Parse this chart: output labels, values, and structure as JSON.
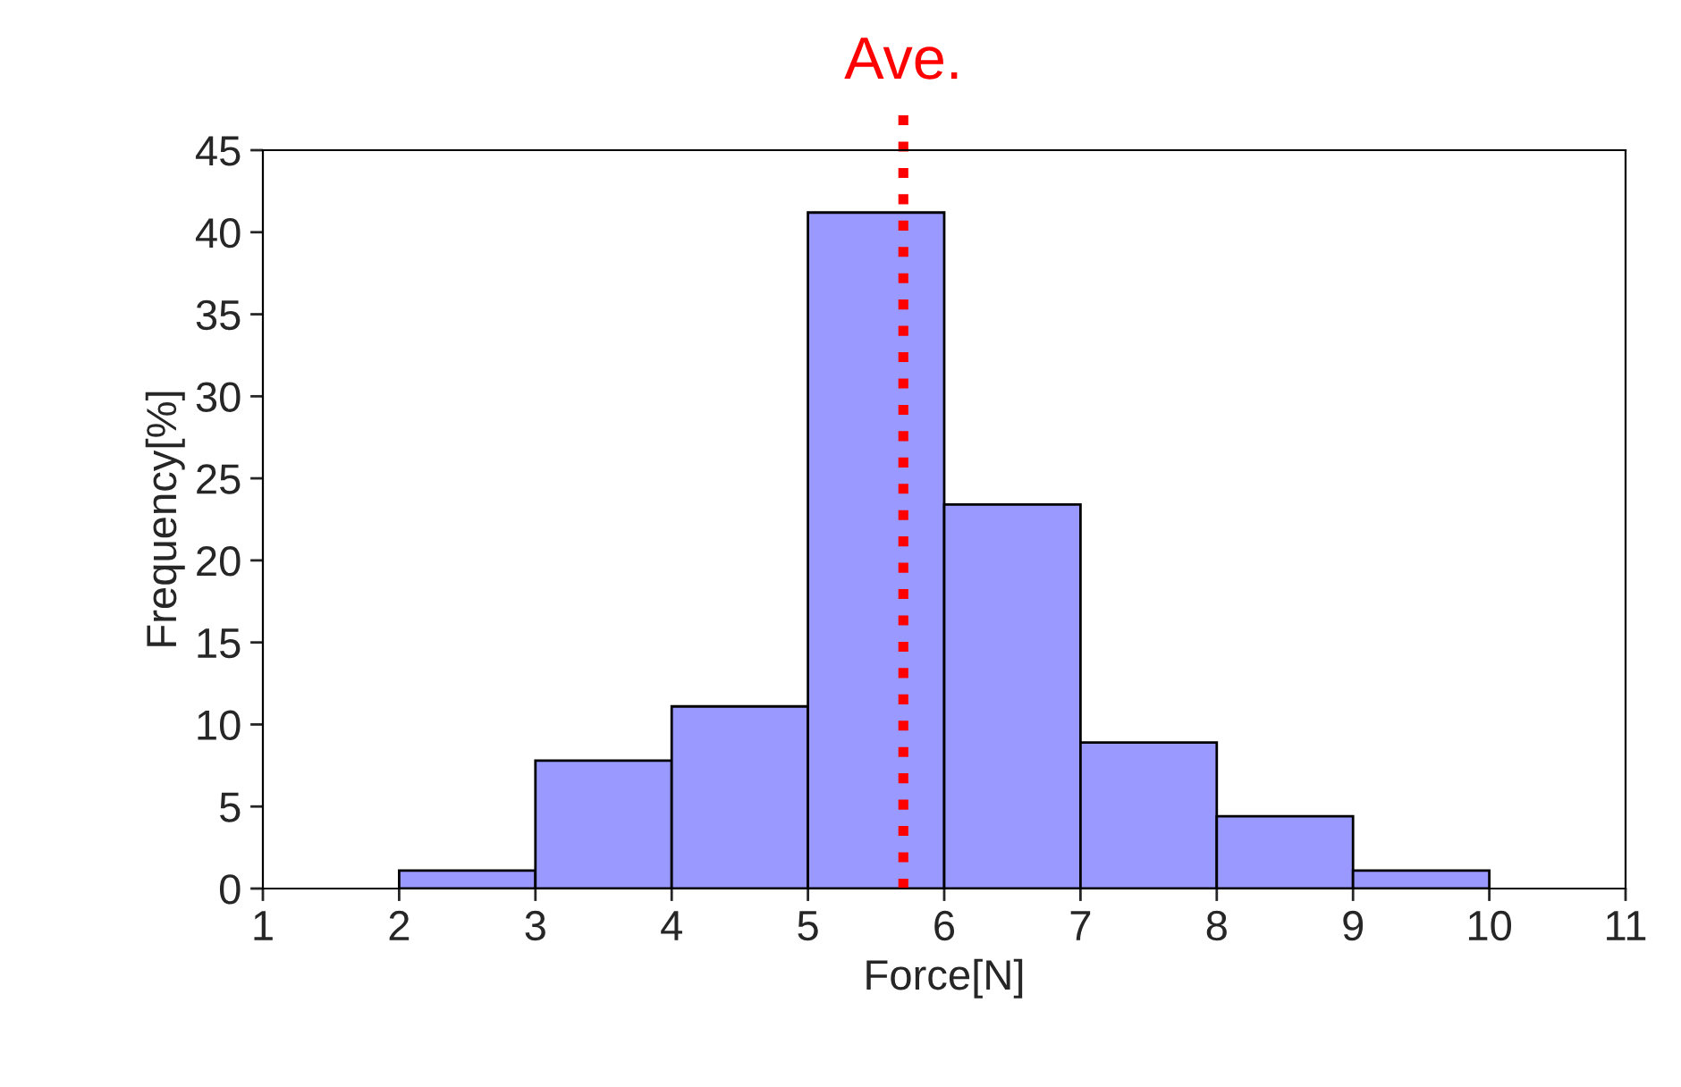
{
  "chart_data": {
    "type": "histogram",
    "xlabel": "Force[N]",
    "ylabel": "Frequency[%]",
    "bins": [
      2,
      3,
      4,
      5,
      6,
      7,
      8,
      9,
      10
    ],
    "values": [
      1.1,
      7.8,
      11.1,
      41.2,
      23.4,
      8.9,
      4.4,
      1.1
    ],
    "color": "#9999ff",
    "xlim": [
      1,
      11
    ],
    "xticks": [
      1,
      2,
      3,
      4,
      5,
      6,
      7,
      8,
      9,
      10,
      11
    ],
    "ylim": [
      0,
      45
    ],
    "yticks": [
      0,
      5,
      10,
      15,
      20,
      25,
      30,
      35,
      40,
      45
    ],
    "grid": false,
    "legend": false,
    "ref_lines": [
      {
        "axis": "x",
        "value": 5.7,
        "label": "Ave.",
        "color": "#ff0000",
        "line_style": "dotted"
      }
    ]
  }
}
